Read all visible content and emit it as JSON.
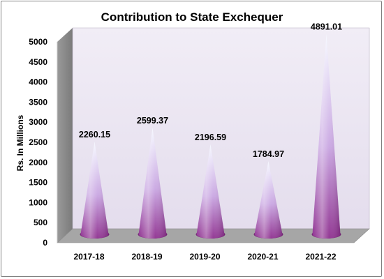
{
  "chart_data": {
    "type": "bar",
    "style": "3d-cone",
    "title": "Contribution to State Exchequer",
    "xlabel": "",
    "ylabel": "Rs. In Millions",
    "categories": [
      "2017-18",
      "2018-19",
      "2019-20",
      "2020-21",
      "2021-22"
    ],
    "values": [
      2260.15,
      2599.37,
      2196.59,
      1784.97,
      4891.01
    ],
    "value_labels": [
      "2260.15",
      "2599.37",
      "2196.59",
      "1784.97",
      "4891.01"
    ],
    "ylim": [
      0,
      5000
    ],
    "yticks": [
      "0",
      "500",
      "1000",
      "1500",
      "2000",
      "2500",
      "3000",
      "3500",
      "4000",
      "4500",
      "5000"
    ],
    "grid": false,
    "legend": "none",
    "colors": {
      "cone_base": "#8e2f8f",
      "cone_mid": "#c9a6e2",
      "cone_tip": "#f4f7ff",
      "back_wall": "#ebe6f2",
      "side_wall": "#8c8c8c",
      "floor": "#a6a6a6"
    }
  }
}
